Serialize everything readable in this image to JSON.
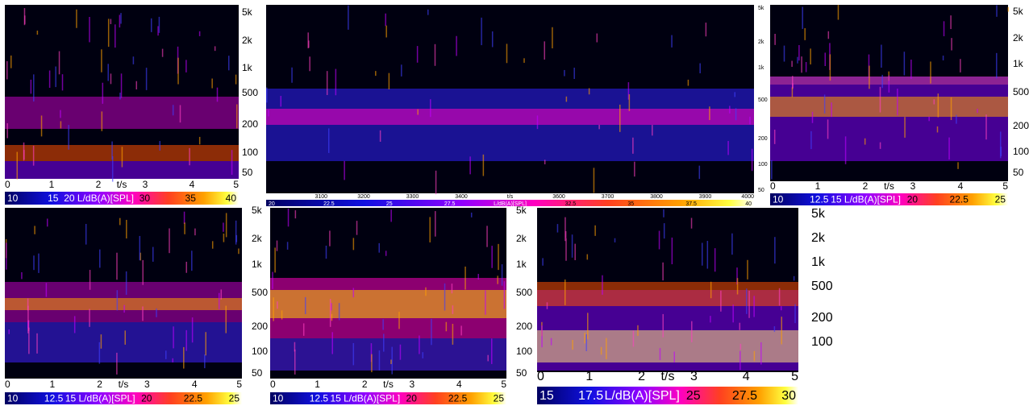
{
  "panels": [
    {
      "freq_labels": [
        "5k",
        "2k",
        "1k",
        "500",
        "200",
        "100",
        "50"
      ],
      "time_labels": [
        "0",
        "1",
        "2",
        "t/s",
        "3",
        "4",
        "5"
      ],
      "colorbar_labels": [
        "10",
        "15",
        "20 L/dB(A)[SPL]",
        "30",
        "35",
        "40"
      ]
    },
    {
      "freq_labels": [
        "5k",
        "2k",
        "1k",
        "500",
        "200",
        "100",
        "50"
      ],
      "time_labels": [
        "3100",
        "3200",
        "3300",
        "3400",
        "t/s",
        "3600",
        "3700",
        "3800",
        "3900",
        "4000"
      ],
      "colorbar_labels": [
        "20",
        "22.5",
        "25",
        "27.5",
        "L/dB(A)[SPL]",
        "32.5",
        "35",
        "37.5",
        "40"
      ]
    },
    {
      "freq_labels": [
        "5k",
        "2k",
        "1k",
        "500",
        "200",
        "100",
        "50"
      ],
      "time_labels": [
        "0",
        "1",
        "2",
        "t/s",
        "3",
        "4",
        "5"
      ],
      "colorbar_labels": [
        "10",
        "12.5",
        "15 L/dB(A)[SPL]",
        "20",
        "22.5",
        "25"
      ]
    },
    {
      "freq_labels": [
        "5k",
        "2k",
        "1k",
        "500",
        "200",
        "100",
        "50"
      ],
      "time_labels": [
        "0",
        "1",
        "2",
        "t/s",
        "3",
        "4",
        "5"
      ],
      "colorbar_labels": [
        "10",
        "12.5",
        "15 L/dB(A)[SPL]",
        "20",
        "22.5",
        "25"
      ]
    },
    {
      "freq_labels": [
        "5k",
        "2k",
        "1k",
        "500",
        "200",
        "100",
        "50"
      ],
      "time_labels": [
        "0",
        "1",
        "2",
        "t/s",
        "3",
        "4",
        "5"
      ],
      "colorbar_labels": [
        "10",
        "12.5",
        "15 L/dB(A)[SPL]",
        "20",
        "22.5",
        "25"
      ]
    },
    {
      "freq_labels": [
        "5k",
        "2k",
        "1k",
        "500",
        "200",
        "100"
      ],
      "time_labels": [
        "0",
        "1",
        "2",
        "t/s",
        "3",
        "4",
        "5"
      ],
      "colorbar_labels": [
        "15",
        "17.5",
        "L/dB(A)[SPL]",
        "25",
        "27.5",
        "30"
      ]
    }
  ]
}
